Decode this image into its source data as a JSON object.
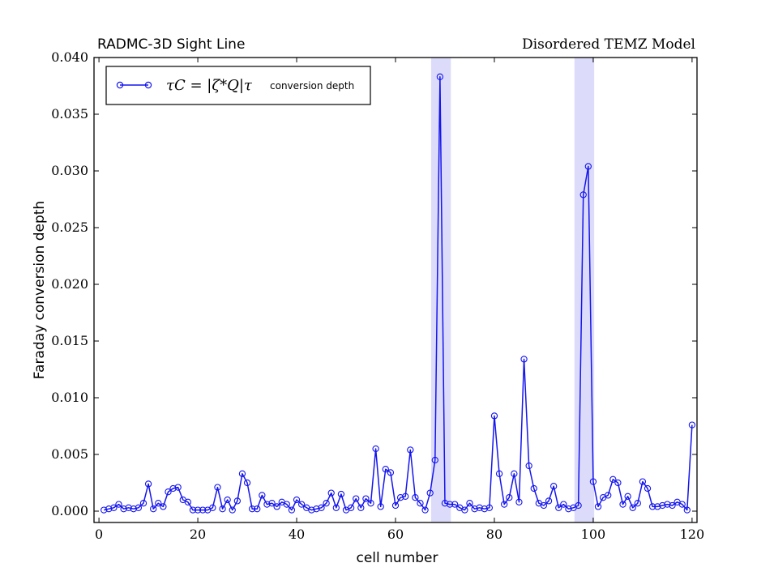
{
  "chart_data": {
    "type": "line",
    "title_left": "RADMC-3D Sight Line",
    "title_right": "Disordered TEMZ Model",
    "xlabel": "cell number",
    "ylabel": "Faraday conversion depth",
    "xlim": [
      -1,
      121
    ],
    "ylim": [
      -0.001,
      0.04
    ],
    "xticks": [
      0,
      20,
      40,
      60,
      80,
      100,
      120
    ],
    "xtick_labels": [
      "0",
      "20",
      "40",
      "60",
      "80",
      "100",
      "120"
    ],
    "yticks": [
      0.0,
      0.005,
      0.01,
      0.015,
      0.02,
      0.025,
      0.03,
      0.035,
      0.04
    ],
    "ytick_labels": [
      "0.000",
      "0.005",
      "0.010",
      "0.015",
      "0.020",
      "0.025",
      "0.030",
      "0.035",
      "0.040"
    ],
    "grid": false,
    "legend_position": "top-left",
    "series_color": "#1515ee",
    "shade_color": "#dcdcfa",
    "legend": {
      "math_label": "τC = |ζ*Q|τ",
      "text_label": "conversion depth"
    },
    "shaded_regions": [
      {
        "x_start": 67.2,
        "x_end": 71.2
      },
      {
        "x_start": 96.2,
        "x_end": 100.2
      }
    ],
    "series": [
      {
        "marker": "open-circle",
        "x": [
          1,
          2,
          3,
          4,
          5,
          6,
          7,
          8,
          9,
          10,
          11,
          12,
          13,
          14,
          15,
          16,
          17,
          18,
          19,
          20,
          21,
          22,
          23,
          24,
          25,
          26,
          27,
          28,
          29,
          30,
          31,
          32,
          33,
          34,
          35,
          36,
          37,
          38,
          39,
          40,
          41,
          42,
          43,
          44,
          45,
          46,
          47,
          48,
          49,
          50,
          51,
          52,
          53,
          54,
          55,
          56,
          57,
          58,
          59,
          60,
          61,
          62,
          63,
          64,
          65,
          66,
          67,
          68,
          69,
          70,
          71,
          72,
          73,
          74,
          75,
          76,
          77,
          78,
          79,
          80,
          81,
          82,
          83,
          84,
          85,
          86,
          87,
          88,
          89,
          90,
          91,
          92,
          93,
          94,
          95,
          96,
          97,
          98,
          99,
          100,
          101,
          102,
          103,
          104,
          105,
          106,
          107,
          108,
          109,
          110,
          111,
          112,
          113,
          114,
          115,
          116,
          117,
          118,
          119,
          120
        ],
        "y": [
          0.0001,
          0.0002,
          0.0003,
          0.0006,
          0.0002,
          0.0003,
          0.0002,
          0.0003,
          0.0007,
          0.0024,
          0.0002,
          0.0007,
          0.0004,
          0.0017,
          0.002,
          0.0021,
          0.001,
          0.0008,
          0.0001,
          0.0001,
          0.0001,
          0.0001,
          0.0003,
          0.0021,
          0.0002,
          0.001,
          0.0001,
          0.0009,
          0.0033,
          0.0025,
          0.0002,
          0.0002,
          0.0014,
          0.0006,
          0.0007,
          0.0004,
          0.0008,
          0.0006,
          0.0001,
          0.001,
          0.0006,
          0.0003,
          0.0001,
          0.0002,
          0.0003,
          0.0007,
          0.0016,
          0.0003,
          0.0015,
          0.0001,
          0.0003,
          0.0011,
          0.0003,
          0.0011,
          0.0007,
          0.0055,
          0.0004,
          0.0037,
          0.0034,
          0.0005,
          0.0012,
          0.0013,
          0.0054,
          0.0012,
          0.0007,
          0.0001,
          0.0016,
          0.0045,
          0.0383,
          0.0007,
          0.0006,
          0.0006,
          0.0003,
          0.0001,
          0.0007,
          0.0002,
          0.0003,
          0.0002,
          0.0003,
          0.0084,
          0.0033,
          0.0006,
          0.0012,
          0.0033,
          0.0008,
          0.0134,
          0.004,
          0.002,
          0.0007,
          0.0005,
          0.0009,
          0.0022,
          0.0003,
          0.0006,
          0.0002,
          0.0003,
          0.0005,
          0.0279,
          0.0304,
          0.0026,
          0.0004,
          0.0012,
          0.0014,
          0.0028,
          0.0025,
          0.0006,
          0.0013,
          0.0003,
          0.0007,
          0.0026,
          0.002,
          0.0004,
          0.0004,
          0.0005,
          0.0006,
          0.0005,
          0.0008,
          0.0006,
          0.0001,
          0.0076
        ]
      }
    ]
  }
}
